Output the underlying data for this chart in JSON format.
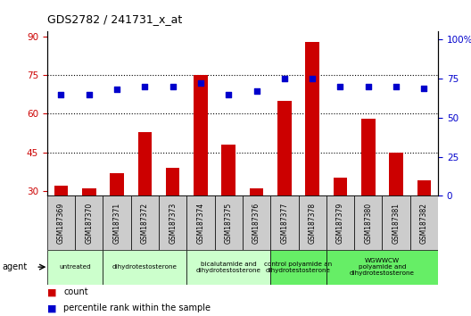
{
  "title": "GDS2782 / 241731_x_at",
  "samples": [
    "GSM187369",
    "GSM187370",
    "GSM187371",
    "GSM187372",
    "GSM187373",
    "GSM187374",
    "GSM187375",
    "GSM187376",
    "GSM187377",
    "GSM187378",
    "GSM187379",
    "GSM187380",
    "GSM187381",
    "GSM187382"
  ],
  "count_values": [
    32,
    31,
    37,
    53,
    39,
    75,
    48,
    31,
    65,
    88,
    35,
    58,
    45,
    34
  ],
  "percentile_values": [
    65,
    65,
    68,
    70,
    70,
    72,
    65,
    67,
    75,
    75,
    70,
    70,
    70,
    69
  ],
  "bar_color": "#cc0000",
  "dot_color": "#0000cc",
  "ylim_left": [
    28,
    92
  ],
  "ylim_right": [
    0,
    105
  ],
  "yticks_left": [
    30,
    45,
    60,
    75,
    90
  ],
  "yticks_right": [
    0,
    25,
    50,
    75,
    100
  ],
  "ytick_labels_right": [
    "0",
    "25",
    "50",
    "75",
    "100%"
  ],
  "hlines": [
    45,
    60,
    75
  ],
  "groups": [
    {
      "label": "untreated",
      "spans": [
        0,
        1
      ],
      "color": "#ccffcc"
    },
    {
      "label": "dihydrotestosterone",
      "spans": [
        2,
        4
      ],
      "color": "#ccffcc"
    },
    {
      "label": "bicalutamide and\ndihydrotestosterone",
      "spans": [
        5,
        7
      ],
      "color": "#ccffcc"
    },
    {
      "label": "control polyamide an\ndihydrotestosterone",
      "spans": [
        8,
        9
      ],
      "color": "#66ee66"
    },
    {
      "label": "WGWWCW\npolyamide and\ndihydrotestosterone",
      "spans": [
        10,
        13
      ],
      "color": "#66ee66"
    }
  ],
  "agent_label": "agent",
  "legend_count_label": "count",
  "legend_pct_label": "percentile rank within the sample",
  "bg_color": "#ffffff",
  "plot_bg_color": "#ffffff",
  "tick_label_color_left": "#cc0000",
  "tick_label_color_right": "#0000cc",
  "dotted_line_color": "#000000",
  "bar_width": 0.5,
  "xtick_bg_color": "#cccccc"
}
